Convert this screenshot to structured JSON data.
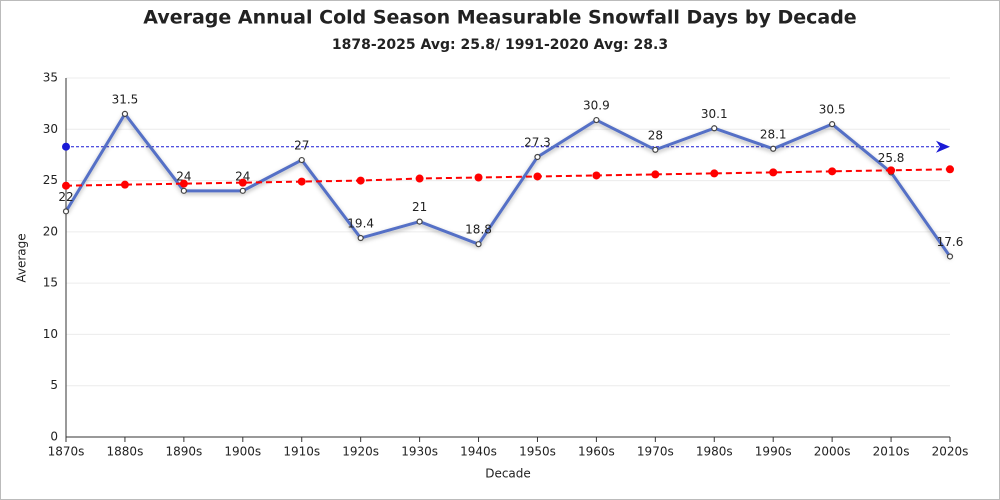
{
  "chart_data": {
    "type": "line",
    "title": "Average Annual Cold Season Measurable Snowfall Days by Decade",
    "subtitle": "1878-2025 Avg: 25.8/ 1991-2020 Avg: 28.3",
    "x_label": "Decade",
    "y_label": "Average",
    "categories": [
      "1870s",
      "1880s",
      "1890s",
      "1900s",
      "1910s",
      "1920s",
      "1930s",
      "1940s",
      "1950s",
      "1960s",
      "1970s",
      "1980s",
      "1990s",
      "2000s",
      "2010s",
      "2020s"
    ],
    "series": [
      {
        "color": "#5470c6",
        "style": "solid",
        "data_labels": true,
        "values": [
          22,
          31.5,
          24,
          24,
          27,
          19.4,
          21,
          18.8,
          27.3,
          30.9,
          28,
          30.1,
          28.1,
          30.5,
          25.8,
          17.6
        ]
      },
      {
        "color": "#ff0000",
        "style": "dashed",
        "data_labels": false,
        "values": [
          24.5,
          24.6,
          24.7,
          24.8,
          24.9,
          25.0,
          25.2,
          25.3,
          25.4,
          25.5,
          25.6,
          25.7,
          25.8,
          25.9,
          26.0,
          26.1
        ]
      }
    ],
    "reference_line": {
      "value": 28.3,
      "color": "#1a1ad6"
    },
    "ylim": [
      0,
      35
    ],
    "yticks": [
      0,
      5,
      10,
      15,
      20,
      25,
      30,
      35
    ],
    "grid": true
  }
}
